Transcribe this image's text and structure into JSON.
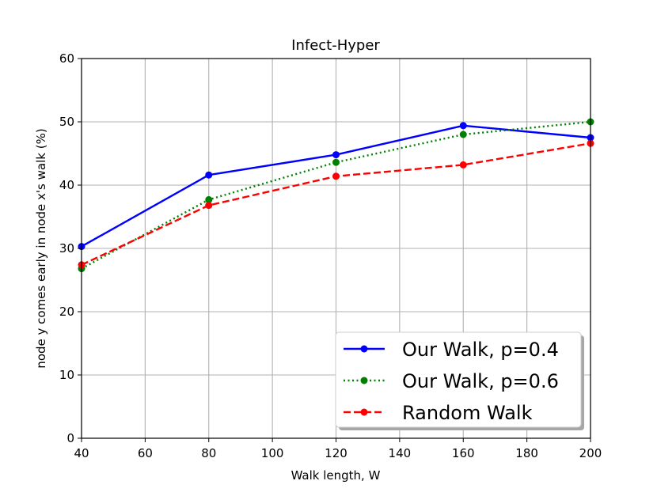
{
  "chart_data": {
    "type": "line",
    "title": "Infect-Hyper",
    "xlabel": "Walk length, W",
    "ylabel": "node y comes early in node x's walk (%)",
    "xlim": [
      40,
      200
    ],
    "ylim": [
      0,
      60
    ],
    "xticks": [
      40,
      60,
      80,
      100,
      120,
      140,
      160,
      180,
      200
    ],
    "yticks": [
      0,
      10,
      20,
      30,
      40,
      50,
      60
    ],
    "grid": true,
    "legend_position": "bottom-right",
    "series": [
      {
        "name": "Our Walk, p=0.4",
        "color": "#0000ff",
        "linestyle": "solid",
        "marker": "circle",
        "x": [
          40,
          80,
          120,
          160,
          200
        ],
        "y": [
          30.3,
          41.6,
          44.8,
          49.4,
          47.5
        ]
      },
      {
        "name": "Our Walk, p=0.6",
        "color": "#008000",
        "linestyle": "dotted",
        "marker": "circle",
        "x": [
          40,
          80,
          120,
          160,
          200
        ],
        "y": [
          26.8,
          37.7,
          43.6,
          48.0,
          50.0
        ]
      },
      {
        "name": "Random Walk",
        "color": "#ff0000",
        "linestyle": "dashed",
        "marker": "circle",
        "x": [
          40,
          80,
          120,
          160,
          200
        ],
        "y": [
          27.4,
          36.8,
          41.4,
          43.2,
          46.6
        ]
      }
    ]
  }
}
